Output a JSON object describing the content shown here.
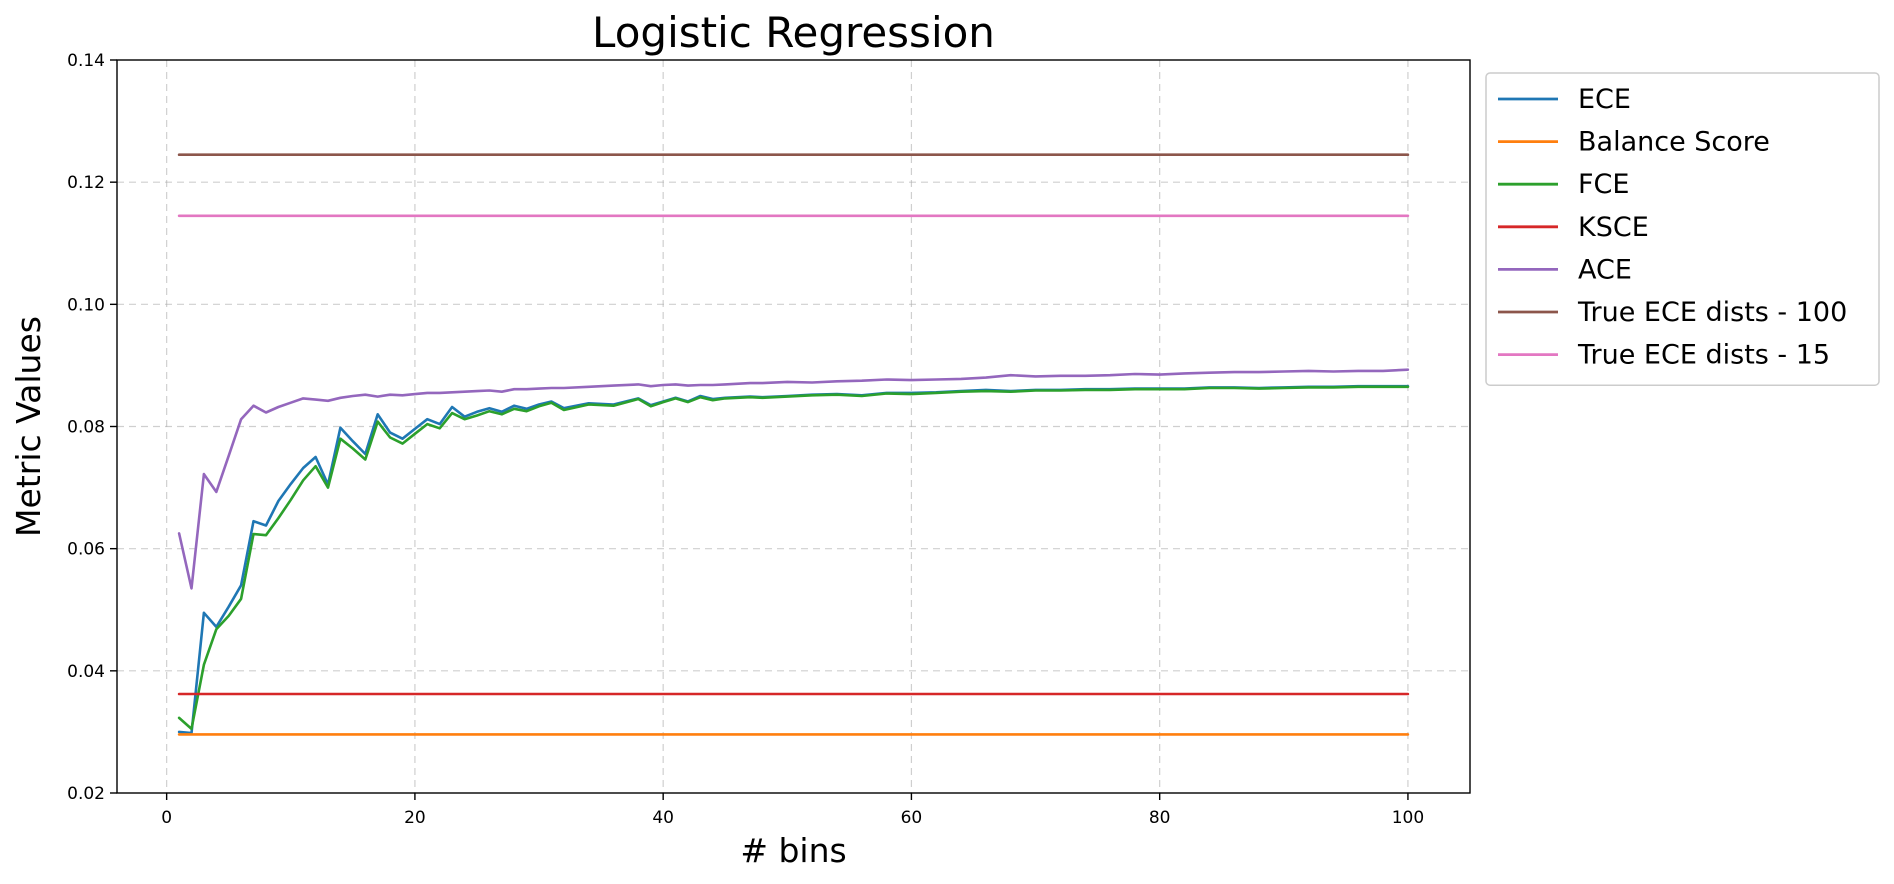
{
  "chart_data": {
    "type": "line",
    "title": "Logistic Regression",
    "xlabel": "# bins",
    "ylabel": "Metric Values",
    "xlim": [
      -4,
      105
    ],
    "ylim": [
      0.02,
      0.14
    ],
    "xticks": [
      0,
      20,
      40,
      60,
      80,
      100
    ],
    "xtick_labels": [
      "0",
      "20",
      "40",
      "60",
      "80",
      "100"
    ],
    "yticks": [
      0.02,
      0.04,
      0.06,
      0.08,
      0.1,
      0.12,
      0.14
    ],
    "ytick_labels": [
      "0.02",
      "0.04",
      "0.06",
      "0.08",
      "0.10",
      "0.12",
      "0.14"
    ],
    "grid": true,
    "legend_position": "outside-right-top",
    "x": [
      1,
      2,
      3,
      4,
      5,
      6,
      7,
      8,
      9,
      10,
      11,
      12,
      13,
      14,
      15,
      16,
      17,
      18,
      19,
      20,
      21,
      22,
      23,
      24,
      25,
      26,
      27,
      28,
      29,
      30,
      31,
      32,
      34,
      36,
      38,
      39,
      40,
      41,
      42,
      43,
      44,
      45,
      47,
      48,
      50,
      52,
      54,
      56,
      58,
      60,
      62,
      64,
      66,
      68,
      70,
      72,
      74,
      76,
      78,
      80,
      82,
      84,
      86,
      88,
      90,
      92,
      94,
      96,
      98,
      100
    ],
    "series": [
      {
        "name": "ECE",
        "color": "#1f77b4",
        "values": [
          0.03,
          0.0298,
          0.0495,
          0.0472,
          0.0505,
          0.054,
          0.0645,
          0.0638,
          0.0678,
          0.0706,
          0.0732,
          0.075,
          0.0705,
          0.0798,
          0.0776,
          0.0755,
          0.082,
          0.079,
          0.078,
          0.0796,
          0.0812,
          0.0804,
          0.0832,
          0.0816,
          0.0824,
          0.083,
          0.0824,
          0.0834,
          0.0829,
          0.0836,
          0.0841,
          0.083,
          0.0838,
          0.0836,
          0.0846,
          0.0835,
          0.0841,
          0.0847,
          0.0841,
          0.085,
          0.0845,
          0.0847,
          0.0849,
          0.0848,
          0.085,
          0.0852,
          0.0853,
          0.0851,
          0.0855,
          0.0855,
          0.0856,
          0.0858,
          0.086,
          0.0858,
          0.086,
          0.086,
          0.0861,
          0.0861,
          0.0862,
          0.0862,
          0.0862,
          0.0864,
          0.0864,
          0.0863,
          0.0864,
          0.0865,
          0.0865,
          0.0866,
          0.0866,
          0.0866
        ]
      },
      {
        "name": "Balance Score",
        "color": "#ff7f0e",
        "values": [
          0.0296,
          0.0296,
          0.0296,
          0.0296,
          0.0296,
          0.0296,
          0.0296,
          0.0296,
          0.0296,
          0.0296,
          0.0296,
          0.0296,
          0.0296,
          0.0296,
          0.0296,
          0.0296,
          0.0296,
          0.0296,
          0.0296,
          0.0296,
          0.0296,
          0.0296,
          0.0296,
          0.0296,
          0.0296,
          0.0296,
          0.0296,
          0.0296,
          0.0296,
          0.0296,
          0.0296,
          0.0296,
          0.0296,
          0.0296,
          0.0296,
          0.0296,
          0.0296,
          0.0296,
          0.0296,
          0.0296,
          0.0296,
          0.0296,
          0.0296,
          0.0296,
          0.0296,
          0.0296,
          0.0296,
          0.0296,
          0.0296,
          0.0296,
          0.0296,
          0.0296,
          0.0296,
          0.0296,
          0.0296,
          0.0296,
          0.0296,
          0.0296,
          0.0296,
          0.0296,
          0.0296,
          0.0296,
          0.0296,
          0.0296,
          0.0296,
          0.0296,
          0.0296,
          0.0296,
          0.0296,
          0.0296
        ]
      },
      {
        "name": "FCE",
        "color": "#2ca02c",
        "values": [
          0.0323,
          0.0305,
          0.041,
          0.0468,
          0.049,
          0.0518,
          0.0624,
          0.0622,
          0.065,
          0.068,
          0.0712,
          0.0735,
          0.07,
          0.078,
          0.0764,
          0.0746,
          0.0808,
          0.0782,
          0.0772,
          0.0788,
          0.0804,
          0.0797,
          0.0822,
          0.0812,
          0.0818,
          0.0825,
          0.082,
          0.0829,
          0.0825,
          0.0833,
          0.0839,
          0.0827,
          0.0836,
          0.0834,
          0.0845,
          0.0833,
          0.084,
          0.0846,
          0.084,
          0.0848,
          0.0843,
          0.0846,
          0.0848,
          0.0847,
          0.0849,
          0.0851,
          0.0852,
          0.085,
          0.0854,
          0.0853,
          0.0855,
          0.0857,
          0.0858,
          0.0857,
          0.0859,
          0.0859,
          0.086,
          0.086,
          0.0861,
          0.0861,
          0.0861,
          0.0863,
          0.0863,
          0.0862,
          0.0863,
          0.0864,
          0.0864,
          0.0865,
          0.0865,
          0.0865
        ]
      },
      {
        "name": "KSCE",
        "color": "#d62728",
        "values": [
          0.0362,
          0.0362,
          0.0362,
          0.0362,
          0.0362,
          0.0362,
          0.0362,
          0.0362,
          0.0362,
          0.0362,
          0.0362,
          0.0362,
          0.0362,
          0.0362,
          0.0362,
          0.0362,
          0.0362,
          0.0362,
          0.0362,
          0.0362,
          0.0362,
          0.0362,
          0.0362,
          0.0362,
          0.0362,
          0.0362,
          0.0362,
          0.0362,
          0.0362,
          0.0362,
          0.0362,
          0.0362,
          0.0362,
          0.0362,
          0.0362,
          0.0362,
          0.0362,
          0.0362,
          0.0362,
          0.0362,
          0.0362,
          0.0362,
          0.0362,
          0.0362,
          0.0362,
          0.0362,
          0.0362,
          0.0362,
          0.0362,
          0.0362,
          0.0362,
          0.0362,
          0.0362,
          0.0362,
          0.0362,
          0.0362,
          0.0362,
          0.0362,
          0.0362,
          0.0362,
          0.0362,
          0.0362,
          0.0362,
          0.0362,
          0.0362,
          0.0362,
          0.0362,
          0.0362,
          0.0362,
          0.0362
        ]
      },
      {
        "name": "ACE",
        "color": "#9467bd",
        "values": [
          0.0625,
          0.0535,
          0.0722,
          0.0693,
          0.0752,
          0.0812,
          0.0834,
          0.0823,
          0.0832,
          0.0839,
          0.0846,
          0.0844,
          0.0842,
          0.0847,
          0.085,
          0.0852,
          0.0849,
          0.0852,
          0.0851,
          0.0853,
          0.0855,
          0.0855,
          0.0856,
          0.0857,
          0.0858,
          0.0859,
          0.0857,
          0.0861,
          0.0861,
          0.0862,
          0.0863,
          0.0863,
          0.0865,
          0.0867,
          0.0869,
          0.0866,
          0.0868,
          0.0869,
          0.0867,
          0.0868,
          0.0868,
          0.0869,
          0.0871,
          0.0871,
          0.0873,
          0.0872,
          0.0874,
          0.0875,
          0.0877,
          0.0876,
          0.0877,
          0.0878,
          0.088,
          0.0884,
          0.0882,
          0.0883,
          0.0883,
          0.0884,
          0.0886,
          0.0885,
          0.0887,
          0.0888,
          0.0889,
          0.0889,
          0.089,
          0.0891,
          0.089,
          0.0891,
          0.0891,
          0.0893
        ]
      },
      {
        "name": "True ECE dists - 100",
        "color": "#8c564b",
        "values": [
          0.1245,
          0.1245,
          0.1245,
          0.1245,
          0.1245,
          0.1245,
          0.1245,
          0.1245,
          0.1245,
          0.1245,
          0.1245,
          0.1245,
          0.1245,
          0.1245,
          0.1245,
          0.1245,
          0.1245,
          0.1245,
          0.1245,
          0.1245,
          0.1245,
          0.1245,
          0.1245,
          0.1245,
          0.1245,
          0.1245,
          0.1245,
          0.1245,
          0.1245,
          0.1245,
          0.1245,
          0.1245,
          0.1245,
          0.1245,
          0.1245,
          0.1245,
          0.1245,
          0.1245,
          0.1245,
          0.1245,
          0.1245,
          0.1245,
          0.1245,
          0.1245,
          0.1245,
          0.1245,
          0.1245,
          0.1245,
          0.1245,
          0.1245,
          0.1245,
          0.1245,
          0.1245,
          0.1245,
          0.1245,
          0.1245,
          0.1245,
          0.1245,
          0.1245,
          0.1245,
          0.1245,
          0.1245,
          0.1245,
          0.1245,
          0.1245,
          0.1245,
          0.1245,
          0.1245,
          0.1245,
          0.1245
        ]
      },
      {
        "name": "True ECE dists - 15",
        "color": "#e377c2",
        "values": [
          0.1145,
          0.1145,
          0.1145,
          0.1145,
          0.1145,
          0.1145,
          0.1145,
          0.1145,
          0.1145,
          0.1145,
          0.1145,
          0.1145,
          0.1145,
          0.1145,
          0.1145,
          0.1145,
          0.1145,
          0.1145,
          0.1145,
          0.1145,
          0.1145,
          0.1145,
          0.1145,
          0.1145,
          0.1145,
          0.1145,
          0.1145,
          0.1145,
          0.1145,
          0.1145,
          0.1145,
          0.1145,
          0.1145,
          0.1145,
          0.1145,
          0.1145,
          0.1145,
          0.1145,
          0.1145,
          0.1145,
          0.1145,
          0.1145,
          0.1145,
          0.1145,
          0.1145,
          0.1145,
          0.1145,
          0.1145,
          0.1145,
          0.1145,
          0.1145,
          0.1145,
          0.1145,
          0.1145,
          0.1145,
          0.1145,
          0.1145,
          0.1145,
          0.1145,
          0.1145,
          0.1145,
          0.1145,
          0.1145,
          0.1145,
          0.1145,
          0.1145,
          0.1145,
          0.1145,
          0.1145,
          0.1145
        ]
      }
    ]
  }
}
